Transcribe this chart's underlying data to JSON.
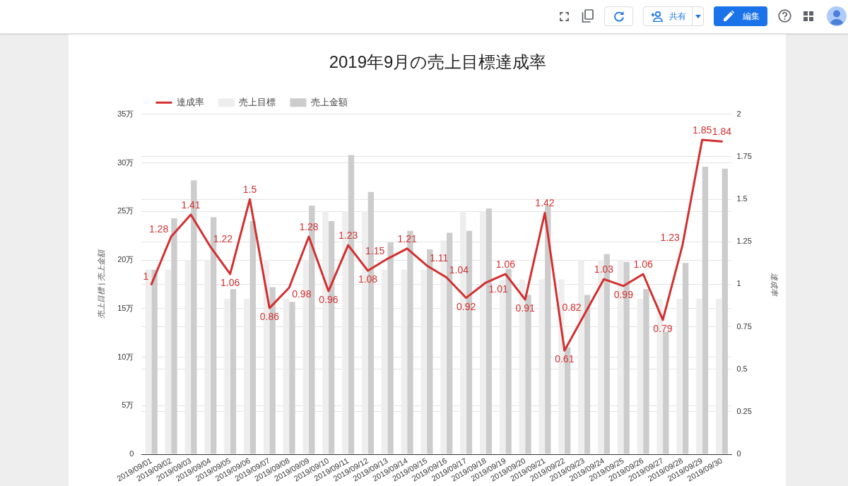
{
  "chart_data": {
    "type": "bar",
    "title": "2019年9月の売上目標達成率",
    "ylabel": "売上目標 | 売上金額",
    "y2label": "達成率",
    "categories": [
      "2019/09/01",
      "2019/09/02",
      "2019/09/03",
      "2019/09/04",
      "2019/09/05",
      "2019/09/06",
      "2019/09/07",
      "2019/09/08",
      "2019/09/09",
      "2019/09/10",
      "2019/09/11",
      "2019/09/12",
      "2019/09/13",
      "2019/09/14",
      "2019/09/15",
      "2019/09/16",
      "2019/09/17",
      "2019/09/18",
      "2019/09/19",
      "2019/09/20",
      "2019/09/21",
      "2019/09/22",
      "2019/09/23",
      "2019/09/24",
      "2019/09/25",
      "2019/09/26",
      "2019/09/27",
      "2019/09/28",
      "2019/09/29",
      "2019/09/30"
    ],
    "series": [
      {
        "name": "達成率",
        "type": "line",
        "axis": "y2",
        "color": "#d32f2f",
        "values": [
          1,
          1.28,
          1.41,
          1.22,
          1.06,
          1.5,
          0.86,
          0.98,
          1.28,
          0.96,
          1.23,
          1.08,
          1.15,
          1.21,
          1.11,
          1.04,
          0.92,
          1.01,
          1.06,
          0.91,
          1.42,
          0.61,
          0.82,
          1.03,
          0.99,
          1.06,
          0.79,
          1.23,
          1.85,
          1.84
        ],
        "value_labels": [
          "1",
          "1.28",
          "1.41",
          "1.22",
          "1.06",
          "1.5",
          "0.86",
          "0.98",
          "1.28",
          "0.96",
          "1.23",
          "1.08",
          "1.15",
          "1.21",
          "1.11",
          "1.04",
          "0.92",
          "1.01",
          "1.06",
          "0.91",
          "1.42",
          "0.61",
          "0.82",
          "1.03",
          "0.99",
          "1.06",
          "0.79",
          "1.23",
          "1.85",
          "1.84"
        ]
      },
      {
        "name": "売上目標",
        "color": "#eeeeee",
        "values": [
          19,
          19,
          20,
          20,
          16,
          16,
          20,
          16,
          20,
          25,
          25,
          25,
          19,
          19,
          19,
          22,
          25,
          25,
          18,
          18,
          18,
          18,
          20,
          20,
          20,
          16,
          16,
          16,
          16,
          16
        ]
      },
      {
        "name": "売上金額",
        "color": "#cccccc",
        "values": [
          19,
          24.3,
          28.2,
          24.4,
          17,
          24,
          17.2,
          15.7,
          25.6,
          24,
          30.8,
          27,
          21.8,
          23,
          21.1,
          22.8,
          23,
          25.3,
          19.1,
          16.4,
          25.6,
          11,
          16.4,
          20.6,
          19.8,
          17,
          12.6,
          19.7,
          29.6,
          29.4
        ]
      }
    ],
    "ylim": [
      0,
      35
    ],
    "yticks": [
      0,
      {
        "value": 5,
        "label": "5万"
      },
      {
        "value": 10,
        "label": "10万"
      },
      {
        "value": 15,
        "label": "15万"
      },
      {
        "value": 20,
        "label": "20万"
      },
      {
        "value": 25,
        "label": "25万"
      },
      {
        "value": 30,
        "label": "30万"
      },
      {
        "value": 35,
        "label": "35万"
      }
    ],
    "y2lim": [
      0,
      2
    ],
    "y2ticks": [
      0,
      0.25,
      0.5,
      0.75,
      1,
      1.25,
      1.5,
      1.75,
      2
    ],
    "grid": "y",
    "legend": "top left",
    "marker": "none",
    "annotations": [
      "共有",
      "編集"
    ]
  }
}
